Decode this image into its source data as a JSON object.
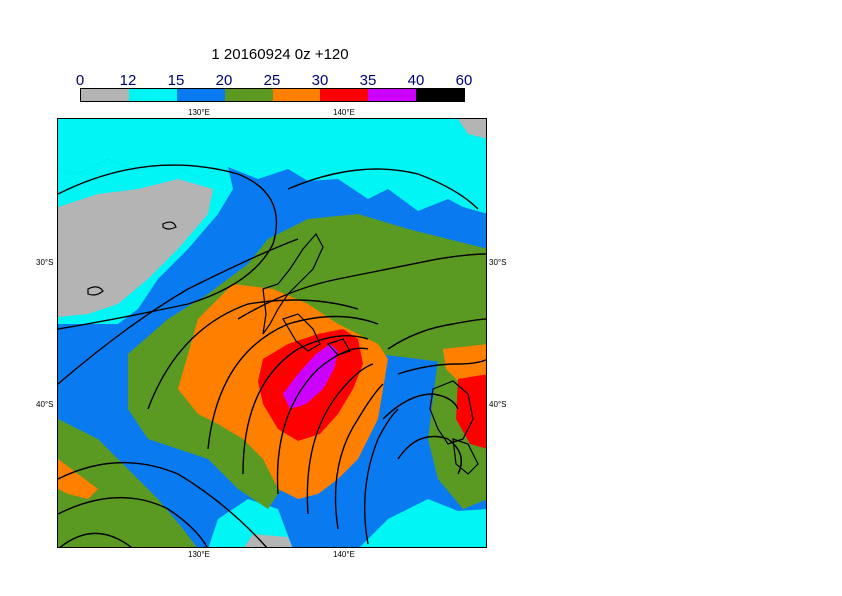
{
  "title": "1 20160924 0z +120",
  "legend": {
    "labels": [
      "0",
      "12",
      "15",
      "20",
      "25",
      "30",
      "35",
      "40",
      "60"
    ],
    "colors": [
      "#b4b4b4",
      "#00f5f5",
      "#0a7af0",
      "#5a9a22",
      "#ff8000",
      "#ff0000",
      "#cc00ff",
      "#000000"
    ]
  },
  "axes": {
    "top_lon": [
      "130°E",
      "140°E"
    ],
    "bottom_lon": [
      "130°E",
      "140°E"
    ],
    "left_lat": [
      "30°S",
      "40°S"
    ],
    "right_lat": [
      "30°S",
      "40°S"
    ]
  }
}
